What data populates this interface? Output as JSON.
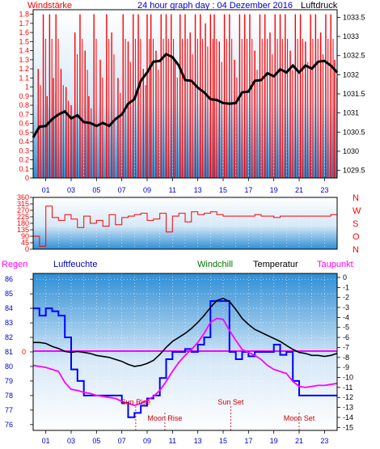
{
  "colors": {
    "panel_top": "#ffffff",
    "panel_bottom": "#2f8fd6",
    "wind": "#ff0000",
    "pressure": "#000000",
    "wind_dir": "#ff0000",
    "humidity": "#0000ff",
    "temperature": "#000000",
    "dewpoint": "#ff00ff",
    "rain_line": "#ff00ff",
    "axis_text_red": "#ff0000",
    "axis_text_blue": "#0000cc",
    "windchill": "#007700",
    "event_text": "#cc0000"
  },
  "header": {
    "left_label": "Windstärke",
    "title": "24 hour graph day : 04 Dezember 2016",
    "right_label": "Luftdruck"
  },
  "chart_data": [
    {
      "type": "line",
      "name": "wind-pressure",
      "y_left_ticks": [
        "1.8",
        "1.7",
        "1.6",
        "1.5",
        "1.4",
        "1.3",
        "1.2",
        "1.1",
        "1",
        "0.9",
        "0.8",
        "0.7",
        "0.6",
        "0.5",
        "0.4",
        "0.3",
        "0.2",
        "0.1",
        "0"
      ],
      "y_right_ticks": [
        "1033.5",
        "1033",
        "1032.5",
        "1032",
        "1031.5",
        "1031",
        "1030.5",
        "1030",
        "1029.5"
      ],
      "ylim_left": [
        0,
        1.85
      ],
      "ylim_right": [
        1029.3,
        1033.7
      ],
      "x_ticks": [
        "01",
        "03",
        "05",
        "07",
        "09",
        "11",
        "13",
        "15",
        "17",
        "19",
        "21",
        "23"
      ],
      "xlim": [
        0,
        24
      ],
      "pressure": {
        "x": [
          0,
          0.5,
          1,
          1.5,
          2,
          2.5,
          3,
          3.5,
          4,
          4.5,
          5,
          5.5,
          6,
          6.5,
          7,
          7.5,
          8,
          8.5,
          9,
          9.5,
          10,
          10.5,
          11,
          11.5,
          12,
          12.5,
          13,
          13.5,
          14,
          14.5,
          15,
          15.5,
          16,
          16.5,
          17,
          17.5,
          18,
          18.5,
          19,
          19.5,
          20,
          20.5,
          21,
          21.5,
          22,
          22.5,
          23,
          23.5,
          24
        ],
        "y": [
          1030.4,
          1030.6,
          1030.7,
          1030.8,
          1031.0,
          1031.0,
          1030.9,
          1030.9,
          1030.8,
          1030.7,
          1030.7,
          1030.7,
          1030.7,
          1030.8,
          1031.0,
          1031.2,
          1031.4,
          1031.8,
          1032.1,
          1032.3,
          1032.4,
          1032.5,
          1032.5,
          1032.2,
          1031.9,
          1031.8,
          1031.7,
          1031.5,
          1031.4,
          1031.3,
          1031.3,
          1031.2,
          1031.3,
          1031.5,
          1031.6,
          1031.8,
          1031.9,
          1032.0,
          1032.0,
          1032.1,
          1032.1,
          1032.2,
          1032.1,
          1032.2,
          1032.2,
          1032.3,
          1032.4,
          1032.2,
          1032.1
        ]
      },
      "wind_spikes": [
        {
          "x": 0.4,
          "y": 1.2
        },
        {
          "x": 0.8,
          "y": 1.8
        },
        {
          "x": 1.1,
          "y": 0.9
        },
        {
          "x": 1.3,
          "y": 1.8
        },
        {
          "x": 1.6,
          "y": 1.1
        },
        {
          "x": 1.8,
          "y": 1.8
        },
        {
          "x": 2.2,
          "y": 1.2
        },
        {
          "x": 2.6,
          "y": 1.0
        },
        {
          "x": 3.0,
          "y": 0.8
        },
        {
          "x": 3.3,
          "y": 1.6
        },
        {
          "x": 3.7,
          "y": 1.8
        },
        {
          "x": 4.1,
          "y": 1.4
        },
        {
          "x": 4.4,
          "y": 0.9
        },
        {
          "x": 4.8,
          "y": 1.8
        },
        {
          "x": 5.3,
          "y": 1.3
        },
        {
          "x": 5.8,
          "y": 1.8
        },
        {
          "x": 6.2,
          "y": 1.6
        },
        {
          "x": 6.7,
          "y": 1.1
        },
        {
          "x": 7.1,
          "y": 1.8
        },
        {
          "x": 7.5,
          "y": 1.5
        },
        {
          "x": 7.9,
          "y": 1.8
        },
        {
          "x": 8.3,
          "y": 1.8
        },
        {
          "x": 8.7,
          "y": 1.2
        },
        {
          "x": 9.0,
          "y": 1.8
        },
        {
          "x": 9.3,
          "y": 1.8
        },
        {
          "x": 9.7,
          "y": 1.4
        },
        {
          "x": 10.1,
          "y": 1.8
        },
        {
          "x": 10.5,
          "y": 1.8
        },
        {
          "x": 10.9,
          "y": 1.8
        },
        {
          "x": 11.2,
          "y": 1.3
        },
        {
          "x": 11.6,
          "y": 1.8
        },
        {
          "x": 12.0,
          "y": 1.8
        },
        {
          "x": 12.4,
          "y": 1.6
        },
        {
          "x": 12.8,
          "y": 1.8
        },
        {
          "x": 13.2,
          "y": 1.8
        },
        {
          "x": 13.6,
          "y": 1.7
        },
        {
          "x": 14.0,
          "y": 1.8
        },
        {
          "x": 14.3,
          "y": 1.8
        },
        {
          "x": 14.7,
          "y": 1.5
        },
        {
          "x": 15.1,
          "y": 1.8
        },
        {
          "x": 15.5,
          "y": 1.8
        },
        {
          "x": 15.9,
          "y": 1.3
        },
        {
          "x": 16.3,
          "y": 1.8
        },
        {
          "x": 16.7,
          "y": 1.8
        },
        {
          "x": 17.1,
          "y": 1.8
        },
        {
          "x": 17.5,
          "y": 1.4
        },
        {
          "x": 17.9,
          "y": 1.8
        },
        {
          "x": 18.3,
          "y": 1.8
        },
        {
          "x": 18.7,
          "y": 1.6
        },
        {
          "x": 19.1,
          "y": 1.8
        },
        {
          "x": 19.5,
          "y": 1.8
        },
        {
          "x": 19.9,
          "y": 1.8
        },
        {
          "x": 20.3,
          "y": 1.4
        },
        {
          "x": 20.7,
          "y": 1.8
        },
        {
          "x": 21.1,
          "y": 1.8
        },
        {
          "x": 21.5,
          "y": 1.5
        },
        {
          "x": 21.9,
          "y": 1.8
        },
        {
          "x": 22.3,
          "y": 1.8
        },
        {
          "x": 22.7,
          "y": 1.6
        },
        {
          "x": 23.1,
          "y": 1.8
        },
        {
          "x": 23.5,
          "y": 1.8
        },
        {
          "x": 23.8,
          "y": 1.3
        }
      ]
    },
    {
      "type": "line",
      "name": "wind-direction",
      "y_left_ticks": [
        "360",
        "315",
        "270",
        "225",
        "180",
        "135",
        "90",
        "45",
        "0"
      ],
      "ylim": [
        0,
        360
      ],
      "compass": [
        "N",
        "W",
        "S",
        "O",
        "N"
      ],
      "x": [
        0,
        0.5,
        1,
        1.5,
        2,
        2.5,
        3,
        3.5,
        4,
        4.5,
        5,
        5.5,
        6,
        6.5,
        7,
        7.5,
        8,
        8.5,
        9,
        9.5,
        10,
        10.5,
        11,
        11.5,
        12,
        12.5,
        13,
        13.5,
        14,
        14.5,
        15,
        15.5,
        16,
        16.5,
        17,
        17.5,
        18,
        18.5,
        19,
        19.5,
        20,
        20.5,
        21,
        21.5,
        22,
        22.5,
        23,
        23.5,
        24
      ],
      "y": [
        90,
        20,
        300,
        220,
        200,
        240,
        210,
        150,
        230,
        180,
        200,
        160,
        240,
        170,
        220,
        230,
        240,
        250,
        200,
        210,
        250,
        120,
        230,
        250,
        190,
        260,
        240,
        250,
        260,
        240,
        230,
        230,
        230,
        230,
        230,
        240,
        230,
        230,
        220,
        230,
        230,
        230,
        230,
        230,
        230,
        230,
        230,
        240,
        230
      ]
    },
    {
      "type": "line",
      "name": "weather",
      "legend": [
        "Regen",
        "Luftfeuchte",
        "Windchill",
        "Temperatur",
        "Taupunkt"
      ],
      "y_left_ticks": [
        "86",
        "85",
        "84",
        "83",
        "82",
        "81",
        "80",
        "79",
        "78",
        "77",
        "76"
      ],
      "y_right_ticks": [
        "0",
        "-1",
        "-2",
        "-3",
        "-4",
        "-5",
        "-6",
        "-7",
        "-8",
        "-9",
        "-10",
        "-11",
        "-12",
        "-13",
        "-14",
        "-15"
      ],
      "ylim_left": [
        75.6,
        86.4
      ],
      "ylim_right": [
        -15.3,
        0.4
      ],
      "rain_label": "0",
      "x": [
        0,
        0.5,
        1,
        1.5,
        2,
        2.5,
        3,
        3.5,
        4,
        4.5,
        5,
        5.5,
        6,
        6.5,
        7,
        7.5,
        8,
        8.5,
        9,
        9.5,
        10,
        10.5,
        11,
        11.5,
        12,
        12.5,
        13,
        13.5,
        14,
        14.5,
        15,
        15.5,
        16,
        16.5,
        17,
        17.5,
        18,
        18.5,
        19,
        19.5,
        20,
        20.5,
        21,
        21.5,
        22,
        22.5,
        23,
        23.5,
        24
      ],
      "humidity": [
        84,
        83.5,
        84,
        83.8,
        83.5,
        82,
        79.8,
        79,
        78,
        78,
        78,
        78,
        78,
        78,
        77.5,
        76.5,
        76.8,
        77.3,
        77.8,
        78,
        79.2,
        80.5,
        81,
        81,
        81.2,
        81,
        81.5,
        82,
        84.5,
        84.5,
        84.5,
        81,
        80.5,
        81,
        80.7,
        81,
        81,
        81,
        81.5,
        80.8,
        81,
        79,
        78,
        78,
        78,
        78,
        78,
        78,
        78
      ],
      "temperature": [
        -6.5,
        -6.5,
        -6.6,
        -6.9,
        -7.1,
        -7.4,
        -7.5,
        -7.4,
        -7.5,
        -7.6,
        -7.8,
        -7.9,
        -8.0,
        -8.2,
        -8.4,
        -8.7,
        -8.9,
        -8.8,
        -8.6,
        -8.3,
        -7.7,
        -7.0,
        -6.4,
        -6.0,
        -5.6,
        -5.1,
        -4.5,
        -3.8,
        -3.0,
        -2.3,
        -2.1,
        -2.4,
        -3.2,
        -4.1,
        -4.7,
        -5.2,
        -5.5,
        -5.8,
        -6.1,
        -6.4,
        -6.8,
        -7.2,
        -7.5,
        -7.6,
        -7.8,
        -7.8,
        -7.9,
        -7.8,
        -7.6
      ],
      "dewpoint": [
        -8.8,
        -8.9,
        -9.0,
        -9.2,
        -9.4,
        -10.5,
        -11.2,
        -11.3,
        -11.5,
        -11.6,
        -11.8,
        -11.9,
        -12.0,
        -12.1,
        -12.4,
        -12.6,
        -12.8,
        -12.6,
        -12.3,
        -11.9,
        -11.3,
        -10.4,
        -9.4,
        -8.5,
        -7.8,
        -7.2,
        -6.5,
        -5.6,
        -4.5,
        -4.1,
        -4.2,
        -5.3,
        -6.3,
        -7.2,
        -7.5,
        -7.8,
        -8.2,
        -8.8,
        -9.2,
        -9.4,
        -9.6,
        -10.4,
        -10.9,
        -11.0,
        -10.9,
        -10.8,
        -10.8,
        -10.7,
        -10.6
      ],
      "events": [
        {
          "label": "Sun Rise",
          "x": 8.1,
          "row": 1
        },
        {
          "label": "Moon Rise",
          "x": 10.4,
          "row": 2
        },
        {
          "label": "Sun Set",
          "x": 15.6,
          "row": 1
        },
        {
          "label": "Moon Set",
          "x": 21.0,
          "row": 2
        }
      ],
      "x_ticks": [
        "01",
        "03",
        "05",
        "07",
        "09",
        "11",
        "13",
        "15",
        "17",
        "19",
        "21",
        "23"
      ]
    }
  ]
}
